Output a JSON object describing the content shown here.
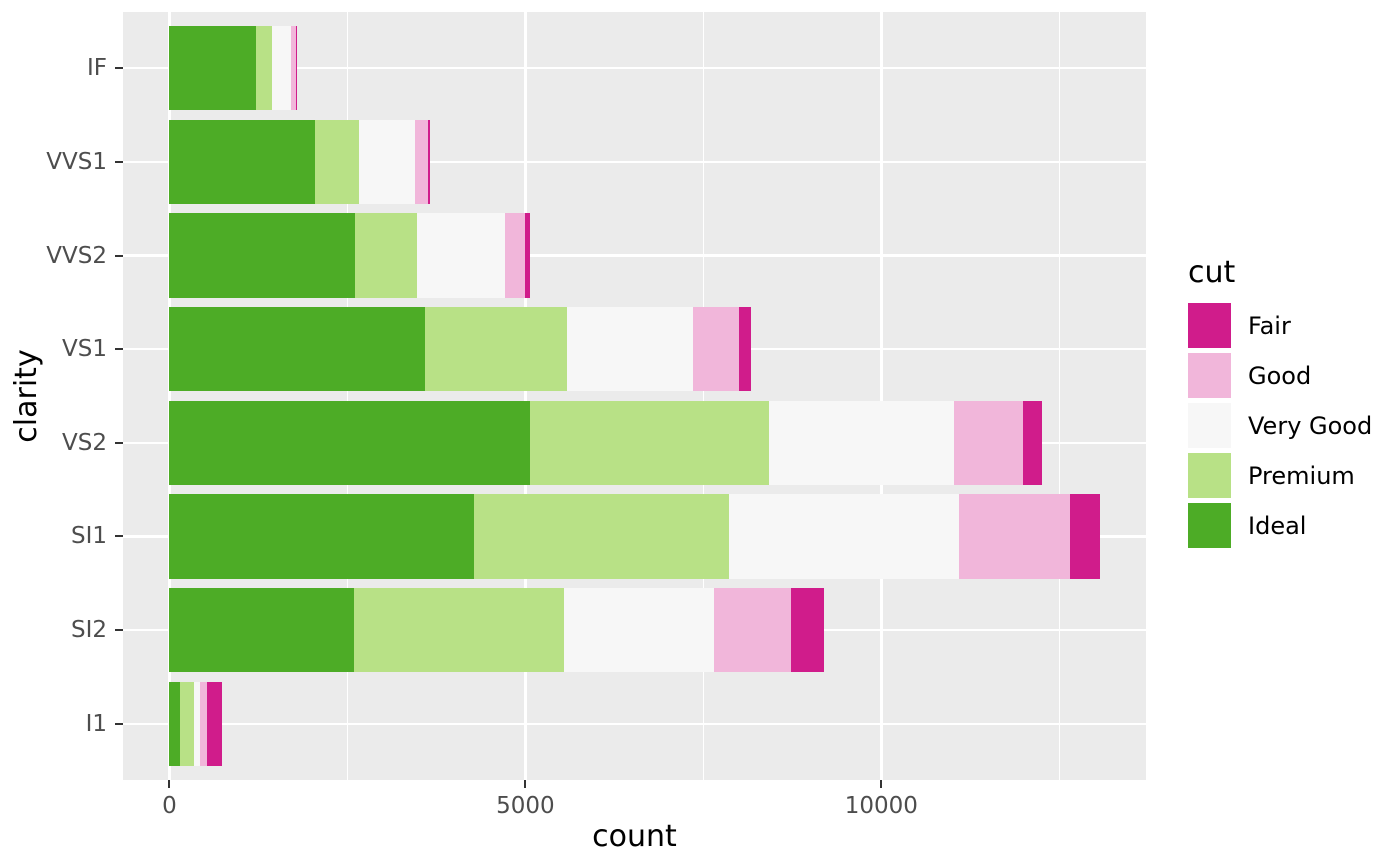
{
  "figure": {
    "background": "#FFFFFF",
    "panel_background": "#EBEBEB",
    "grid_color": "#FFFFFF",
    "tick_mark_color": "#333333",
    "axis_text_color": "#4D4D4D",
    "title_color": "#000000"
  },
  "chart_data": {
    "type": "bar",
    "orientation": "horizontal",
    "stacked": true,
    "title": "",
    "xlabel": "count",
    "ylabel": "clarity",
    "categories": [
      "IF",
      "VVS1",
      "VVS2",
      "VS1",
      "VS2",
      "SI1",
      "SI2",
      "I1"
    ],
    "series": [
      {
        "name": "Ideal",
        "color": "#4DAC26",
        "values": [
          1212,
          2047,
          2606,
          3589,
          5071,
          4282,
          2598,
          146
        ]
      },
      {
        "name": "Premium",
        "color": "#B8E186",
        "values": [
          230,
          616,
          870,
          1989,
          3357,
          3575,
          2949,
          205
        ]
      },
      {
        "name": "Very Good",
        "color": "#F7F7F7",
        "values": [
          268,
          789,
          1235,
          1775,
          2591,
          3240,
          2100,
          84
        ]
      },
      {
        "name": "Good",
        "color": "#F1B6DA",
        "values": [
          71,
          186,
          286,
          648,
          978,
          1560,
          1081,
          96
        ]
      },
      {
        "name": "Fair",
        "color": "#D01C8B",
        "values": [
          9,
          17,
          69,
          170,
          261,
          408,
          466,
          210
        ]
      }
    ],
    "totals": [
      1790,
      3655,
      5066,
      8171,
      12258,
      13065,
      9194,
      741
    ],
    "x_ticks": [
      0,
      5000,
      10000
    ],
    "x_tick_labels": [
      "0",
      "5000",
      "10000"
    ],
    "x_minor_ticks": [
      2500,
      7500,
      12500
    ],
    "xlim": [
      -653,
      13718
    ],
    "grid": true,
    "legend": {
      "title": "cut",
      "position": "right",
      "items": [
        "Fair",
        "Good",
        "Very Good",
        "Premium",
        "Ideal"
      ]
    }
  }
}
